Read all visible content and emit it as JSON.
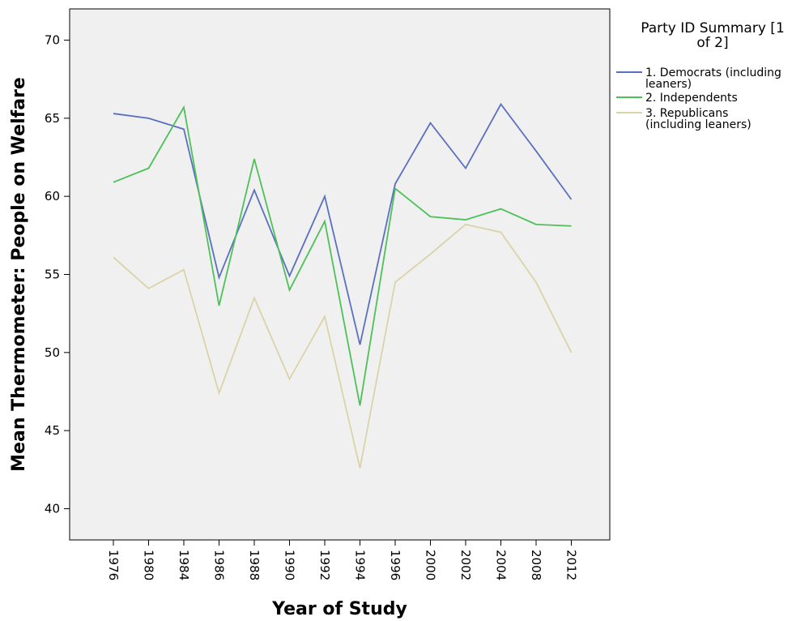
{
  "chart_data": {
    "type": "line",
    "title": "",
    "xlabel": "Year of Study",
    "ylabel": "Mean Thermometer: People on Welfare",
    "categories": [
      "1976",
      "1980",
      "1984",
      "1986",
      "1988",
      "1990",
      "1992",
      "1994",
      "1996",
      "2000",
      "2002",
      "2004",
      "2008",
      "2012"
    ],
    "ylim": [
      38,
      72
    ],
    "yticks": [
      40,
      45,
      50,
      55,
      60,
      65,
      70
    ],
    "grid": false,
    "legend": {
      "title": "Party ID Summary [1 of 2]",
      "title_lines": [
        "Party ID Summary [1",
        "of 2]"
      ],
      "placement": "right"
    },
    "series": [
      {
        "name": "1. Democrats (including leaners)",
        "name_lines": [
          "1. Democrats (including",
          "leaners)"
        ],
        "color": "#5b6fc0",
        "values": [
          65.3,
          65.0,
          64.3,
          54.8,
          60.4,
          54.9,
          60.0,
          50.5,
          60.8,
          64.7,
          61.8,
          65.9,
          62.9,
          59.8
        ]
      },
      {
        "name": "2. Independents",
        "name_lines": [
          "2. Independents"
        ],
        "color": "#4cc158",
        "values": [
          60.9,
          61.8,
          65.7,
          53.0,
          62.4,
          54.0,
          58.4,
          46.6,
          60.5,
          58.7,
          58.5,
          59.2,
          58.2,
          58.1
        ]
      },
      {
        "name": "3. Republicans (including leaners)",
        "name_lines": [
          "3. Republicans",
          "(including leaners)"
        ],
        "color": "#dbd3a8",
        "values": [
          56.1,
          54.1,
          55.3,
          47.4,
          53.5,
          48.3,
          52.3,
          42.6,
          54.5,
          56.3,
          58.2,
          57.7,
          54.5,
          50.0
        ]
      }
    ]
  }
}
